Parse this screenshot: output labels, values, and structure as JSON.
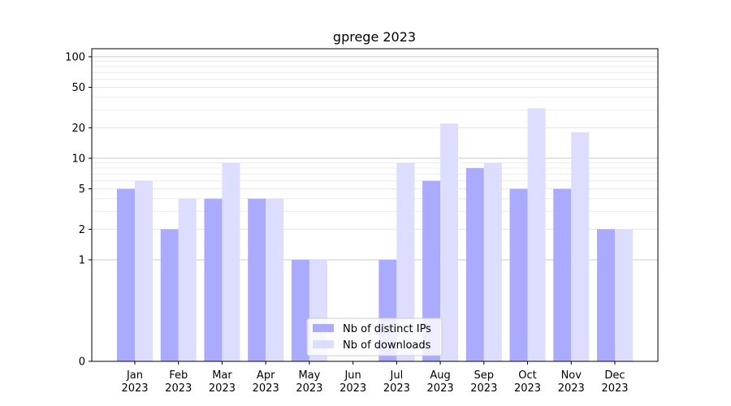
{
  "chart_data": {
    "type": "bar",
    "title": "gprege 2023",
    "xlabel": "",
    "ylabel": "",
    "y_scale": "symlog",
    "ylim": [
      0,
      120
    ],
    "y_ticks": [
      0,
      1,
      2,
      5,
      10,
      20,
      50,
      100
    ],
    "grid": true,
    "legend_position": "bottom-center",
    "categories": [
      {
        "month": "Jan",
        "year": "2023"
      },
      {
        "month": "Feb",
        "year": "2023"
      },
      {
        "month": "Mar",
        "year": "2023"
      },
      {
        "month": "Apr",
        "year": "2023"
      },
      {
        "month": "May",
        "year": "2023"
      },
      {
        "month": "Jun",
        "year": "2023"
      },
      {
        "month": "Jul",
        "year": "2023"
      },
      {
        "month": "Aug",
        "year": "2023"
      },
      {
        "month": "Sep",
        "year": "2023"
      },
      {
        "month": "Oct",
        "year": "2023"
      },
      {
        "month": "Nov",
        "year": "2023"
      },
      {
        "month": "Dec",
        "year": "2023"
      }
    ],
    "series": [
      {
        "name": "Nb of distinct IPs",
        "color": "#aaaaff",
        "values": [
          5,
          2,
          4,
          4,
          1,
          0,
          1,
          6,
          8,
          5,
          5,
          2
        ]
      },
      {
        "name": "Nb of downloads",
        "color": "#ddddff",
        "values": [
          6,
          4,
          9,
          4,
          1,
          0,
          9,
          22,
          9,
          31,
          18,
          2
        ]
      }
    ]
  }
}
